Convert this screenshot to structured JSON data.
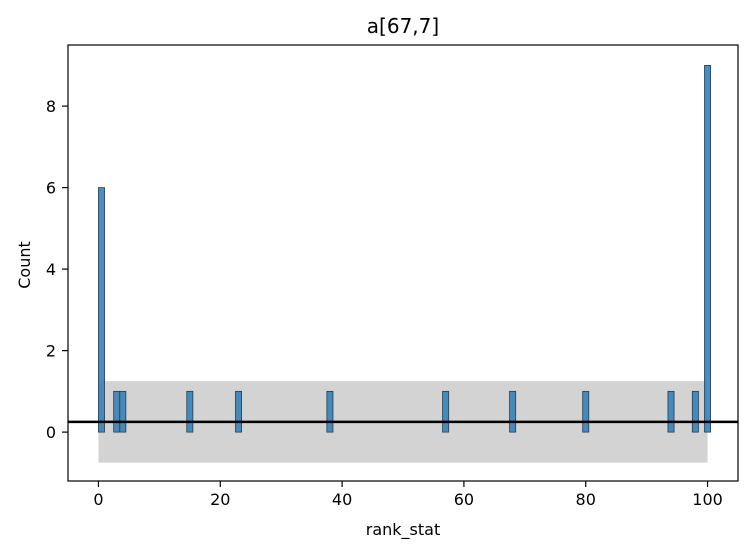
{
  "chart_data": {
    "type": "bar",
    "title": "a[67,7]",
    "xlabel": "rank_stat",
    "ylabel": "Count",
    "xlim": [
      -5,
      105
    ],
    "ylim": [
      -1.2,
      9.5
    ],
    "xticks": [
      0,
      20,
      40,
      60,
      80,
      100
    ],
    "yticks": [
      0,
      2,
      4,
      6,
      8
    ],
    "bin_width": 1,
    "bars": [
      {
        "x": 0,
        "value": 6
      },
      {
        "x": 2.5,
        "value": 1
      },
      {
        "x": 3.5,
        "value": 1
      },
      {
        "x": 14.5,
        "value": 1
      },
      {
        "x": 22.5,
        "value": 1
      },
      {
        "x": 37.5,
        "value": 1
      },
      {
        "x": 56.5,
        "value": 1
      },
      {
        "x": 67.5,
        "value": 1
      },
      {
        "x": 79.5,
        "value": 1
      },
      {
        "x": 93.5,
        "value": 1
      },
      {
        "x": 97.5,
        "value": 1
      },
      {
        "x": 99.5,
        "value": 9
      }
    ],
    "reference_line": {
      "y": 0.25,
      "color": "#000000"
    },
    "band": {
      "x_range": [
        0,
        100
      ],
      "y_range": [
        -0.75,
        1.25
      ],
      "color": "#d3d3d3"
    },
    "bar_color": "#3a7fb4",
    "bar_edge_color": "#1f3f5a",
    "grid": false,
    "legend": "none"
  }
}
